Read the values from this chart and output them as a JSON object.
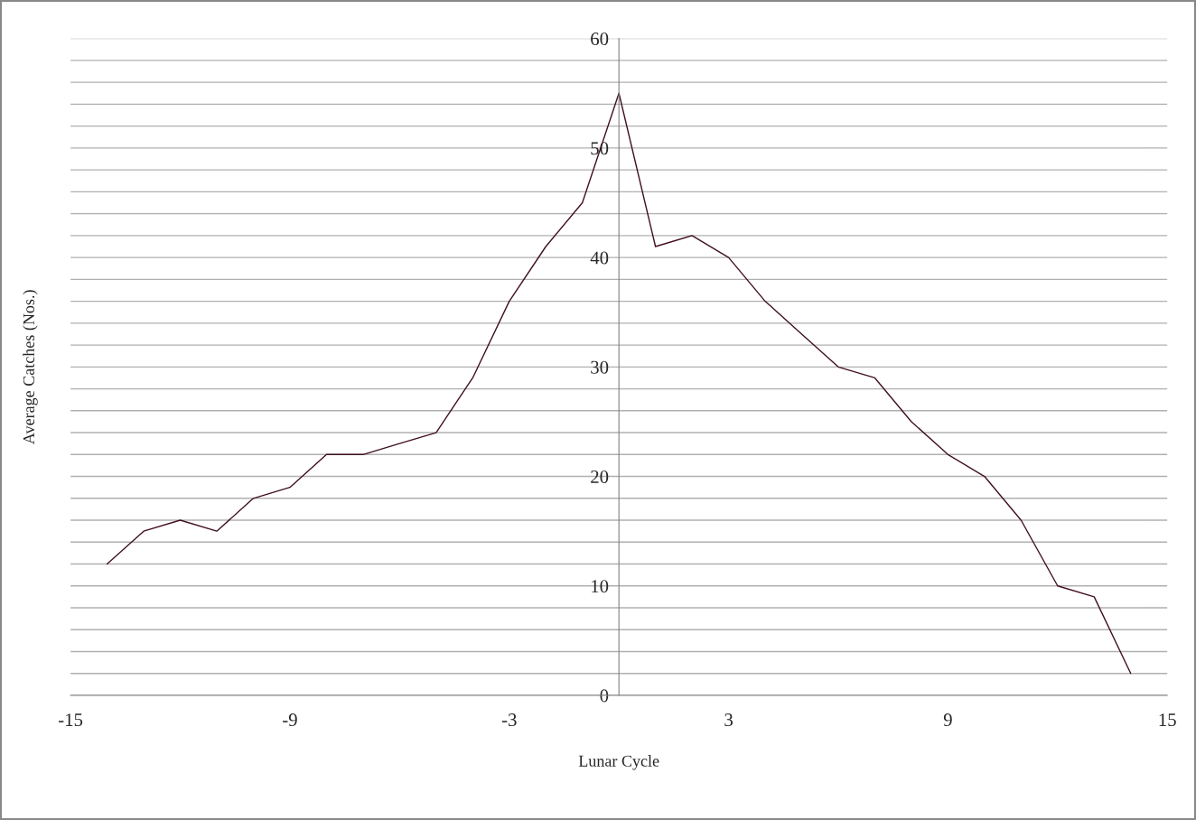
{
  "chart_data": {
    "type": "line",
    "xlabel": "Lunar Cycle",
    "ylabel": "Average Catches (Nos.)",
    "x": [
      -14,
      -13,
      -12,
      -11,
      -10,
      -9,
      -8,
      -7,
      -6,
      -5,
      -4,
      -3,
      -2,
      -1,
      0,
      1,
      2,
      3,
      4,
      5,
      6,
      7,
      8,
      9,
      10,
      11,
      12,
      13,
      14
    ],
    "series": [
      {
        "color": "#40101e",
        "values": [
          12,
          15,
          16,
          15,
          18,
          19,
          22,
          22,
          23,
          24,
          29,
          36,
          41,
          45,
          55,
          41,
          42,
          40,
          36,
          33,
          30,
          29,
          25,
          22,
          20,
          16,
          10,
          9,
          2
        ]
      }
    ],
    "xlim": [
      -15,
      15
    ],
    "xticks": [
      -15,
      -9,
      -3,
      3,
      9,
      15
    ],
    "ylim": [
      0,
      60
    ],
    "yticks": [
      0,
      {
        "value": 2,
        "label": null
      },
      {
        "value": 4,
        "label": null
      },
      {
        "value": 6,
        "label": null
      },
      {
        "value": 8,
        "label": null
      },
      10,
      {
        "value": 12,
        "label": null
      },
      {
        "value": 14,
        "label": null
      },
      {
        "value": 16,
        "label": null
      },
      {
        "value": 18,
        "label": null
      },
      20,
      {
        "value": 22,
        "label": null
      },
      {
        "value": 24,
        "label": null
      },
      {
        "value": 26,
        "label": null
      },
      {
        "value": 28,
        "label": null
      },
      30,
      {
        "value": 32,
        "label": null
      },
      {
        "value": 34,
        "label": null
      },
      {
        "value": 36,
        "label": null
      },
      {
        "value": 38,
        "label": null
      },
      40,
      {
        "value": 42,
        "label": null
      },
      {
        "value": 44,
        "label": null
      },
      {
        "value": 46,
        "label": null
      },
      {
        "value": 48,
        "label": null
      },
      50,
      {
        "value": 52,
        "label": null
      },
      {
        "value": 54,
        "label": null
      },
      {
        "value": 56,
        "label": null
      },
      {
        "value": 58,
        "label": null
      },
      60
    ],
    "grid": "y",
    "marker": "none",
    "line_style": "solid"
  }
}
